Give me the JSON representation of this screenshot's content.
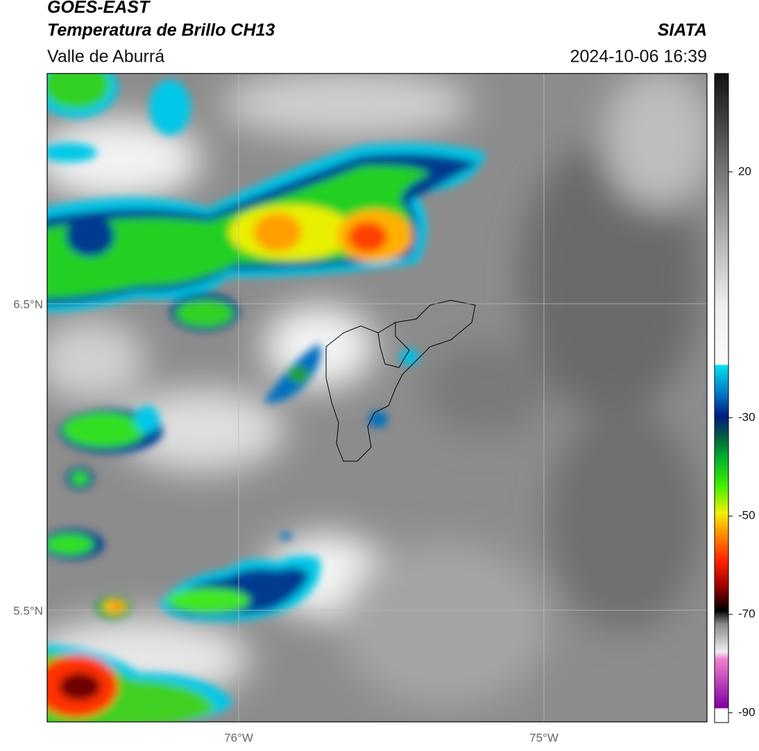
{
  "header": {
    "title": "GOES-EAST",
    "subtitle": "Temperatura de Brillo CH13",
    "region": "Valle de Aburrá",
    "source": "SIATA",
    "datetime": "2024-10-06 16:39"
  },
  "map": {
    "lat_labels": [
      "6.5°N",
      "5.5°N"
    ],
    "lon_labels": [
      "76°W",
      "75°W"
    ]
  },
  "colorbar": {
    "lim": [
      -92,
      40
    ],
    "ticks": [
      20,
      -30,
      -50,
      -70,
      -90
    ]
  }
}
